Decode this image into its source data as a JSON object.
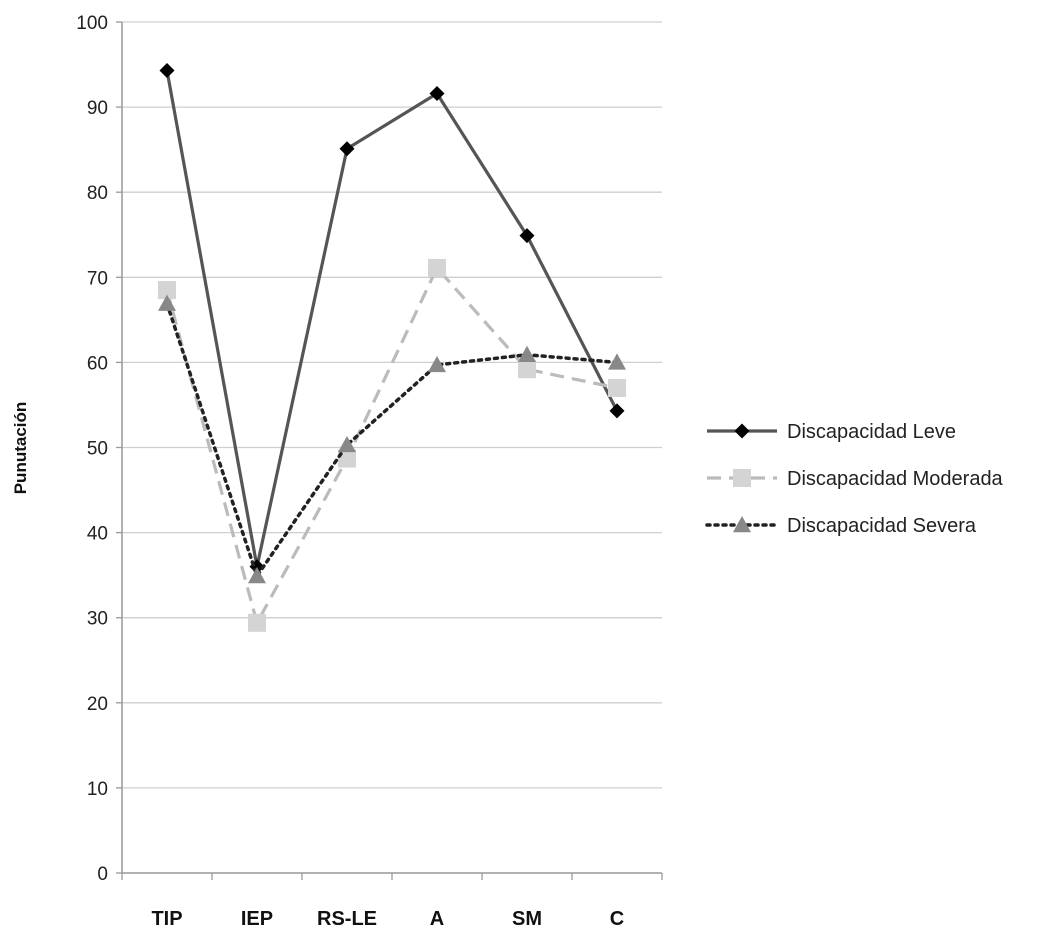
{
  "chart_data": {
    "type": "line",
    "categories": [
      "TIP",
      "IEP",
      "RS-LE",
      "A",
      "SM",
      "C"
    ],
    "ylabel": "Punutación",
    "xlabel": "",
    "ylim": [
      0,
      100
    ],
    "yticks": [
      0,
      10,
      20,
      30,
      40,
      50,
      60,
      70,
      80,
      90,
      100
    ],
    "grid": true,
    "legend_position": "right",
    "series": [
      {
        "name": "Discapacidad Leve",
        "values": [
          94.3,
          36.0,
          85.1,
          91.6,
          74.9,
          54.3
        ],
        "color": "#555555",
        "line_style": "solid",
        "marker": "diamond",
        "marker_color": "#000000"
      },
      {
        "name": "Discapacidad Moderada",
        "values": [
          68.5,
          29.4,
          48.7,
          71.1,
          59.2,
          57.0
        ],
        "color": "#bbbbbb",
        "line_style": "dashed",
        "marker": "square",
        "marker_color": "#d4d4d4"
      },
      {
        "name": "Discapacidad Severa",
        "values": [
          66.9,
          34.9,
          50.3,
          59.7,
          60.9,
          60.0
        ],
        "color": "#222222",
        "line_style": "dotted",
        "marker": "triangle",
        "marker_color": "#888888"
      }
    ]
  }
}
